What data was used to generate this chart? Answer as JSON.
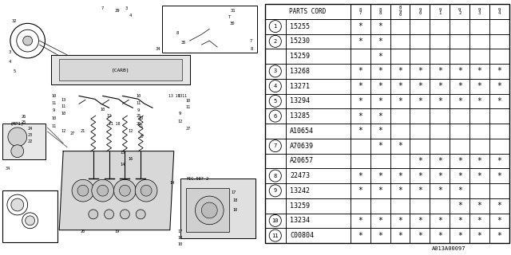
{
  "footer_code": "A013A00097",
  "table": {
    "header_col1": "PARTS CORD",
    "years": [
      "8\n7",
      "8\n8",
      "8\n9\n0",
      "9\n0",
      "9\n1",
      "9\n2",
      "9\n3",
      "9\n4"
    ],
    "rows": [
      {
        "ref": "1",
        "part": "15255",
        "marks": [
          1,
          1,
          0,
          0,
          0,
          0,
          0,
          0
        ],
        "span": 1
      },
      {
        "ref": "2",
        "part": "15230",
        "marks": [
          1,
          1,
          0,
          0,
          0,
          0,
          0,
          0
        ],
        "span": 2
      },
      {
        "ref": "",
        "part": "15259",
        "marks": [
          0,
          1,
          0,
          0,
          0,
          0,
          0,
          0
        ],
        "span": 0
      },
      {
        "ref": "3",
        "part": "13268",
        "marks": [
          1,
          1,
          1,
          1,
          1,
          1,
          1,
          1
        ],
        "span": 1
      },
      {
        "ref": "4",
        "part": "13271",
        "marks": [
          1,
          1,
          1,
          1,
          1,
          1,
          1,
          1
        ],
        "span": 1
      },
      {
        "ref": "5",
        "part": "13294",
        "marks": [
          1,
          1,
          1,
          1,
          1,
          1,
          1,
          1
        ],
        "span": 1
      },
      {
        "ref": "6",
        "part": "13285",
        "marks": [
          1,
          1,
          0,
          0,
          0,
          0,
          0,
          0
        ],
        "span": 1
      },
      {
        "ref": "",
        "part": "A10654",
        "marks": [
          1,
          1,
          0,
          0,
          0,
          0,
          0,
          0
        ],
        "span": 0
      },
      {
        "ref": "7",
        "part": "A70639",
        "marks": [
          0,
          1,
          1,
          0,
          0,
          0,
          0,
          0
        ],
        "span": 3
      },
      {
        "ref": "",
        "part": "A20657",
        "marks": [
          0,
          0,
          0,
          1,
          1,
          1,
          1,
          1
        ],
        "span": 0
      },
      {
        "ref": "8",
        "part": "22473",
        "marks": [
          1,
          1,
          1,
          1,
          1,
          1,
          1,
          1
        ],
        "span": 1
      },
      {
        "ref": "9",
        "part": "13242",
        "marks": [
          1,
          1,
          1,
          1,
          1,
          1,
          0,
          0
        ],
        "span": 2
      },
      {
        "ref": "",
        "part": "13259",
        "marks": [
          0,
          0,
          0,
          0,
          0,
          1,
          1,
          1
        ],
        "span": 0
      },
      {
        "ref": "10",
        "part": "13234",
        "marks": [
          1,
          1,
          1,
          1,
          1,
          1,
          1,
          1
        ],
        "span": 1
      },
      {
        "ref": "11",
        "part": "C00804",
        "marks": [
          1,
          1,
          1,
          1,
          1,
          1,
          1,
          1
        ],
        "span": 1
      }
    ]
  },
  "bg_color": "#ffffff"
}
